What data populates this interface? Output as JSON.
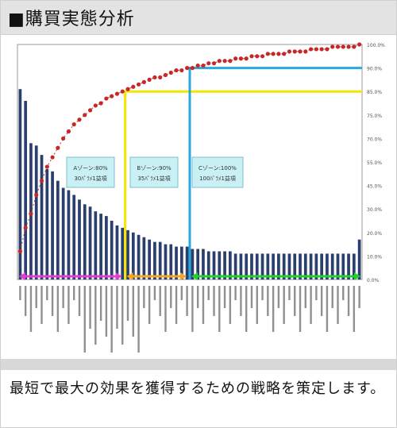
{
  "header": {
    "title": "■購買実態分析"
  },
  "description": "最短で最大の効果を獲得するための戦略を策定します。",
  "colors": {
    "bar": "#2b3f6e",
    "cumulative": "#c62828",
    "zone_a_line": "#f5e500",
    "zone_b_line": "#29a8e0",
    "arrow_a": "#e53fd2",
    "arrow_b": "#f5a623",
    "arrow_c": "#22d12a",
    "box_fill": "#c9f0f4"
  },
  "chart_data": {
    "type": "bar",
    "categories": [
      "",
      "",
      "",
      "",
      "",
      "",
      "",
      "",
      "",
      "",
      "",
      "",
      "",
      "",
      "",
      "",
      "",
      "",
      "",
      "",
      "",
      "",
      "",
      "",
      "",
      "",
      "",
      "",
      "",
      "",
      "",
      "",
      "",
      "",
      "",
      "",
      "",
      "",
      "",
      "",
      "",
      "",
      "",
      "",
      "",
      "",
      "",
      "",
      "",
      "",
      "",
      "",
      "",
      "",
      "",
      "",
      "",
      "",
      "",
      "",
      "",
      "",
      "",
      ""
    ],
    "series": [
      {
        "values": [
          81,
          76,
          58,
          57,
          53,
          47,
          46,
          42,
          39,
          38,
          36,
          34,
          32,
          31,
          29,
          28,
          27,
          25,
          23,
          22,
          21,
          20,
          19,
          18,
          17,
          16,
          16,
          15,
          15,
          14,
          14,
          14,
          13,
          13,
          13,
          12,
          12,
          12,
          12,
          12,
          11,
          11,
          11,
          11,
          11,
          11,
          11,
          11,
          11,
          11,
          11,
          11,
          11,
          11,
          11,
          11,
          11,
          11,
          11,
          11,
          11,
          11,
          11,
          17
        ]
      },
      {
        "values": [
          12,
          22,
          28,
          36,
          42,
          48,
          52,
          56,
          60,
          63,
          66,
          68,
          70,
          72,
          74,
          75,
          77,
          78,
          79,
          80,
          81,
          82,
          83,
          84,
          85,
          86,
          86,
          87,
          88,
          89,
          89,
          90,
          90,
          91,
          91,
          92,
          92,
          93,
          93,
          93,
          94,
          94,
          94,
          95,
          95,
          95,
          96,
          96,
          96,
          96,
          97,
          97,
          97,
          97,
          98,
          98,
          98,
          98,
          99,
          99,
          99,
          99,
          99,
          100
        ]
      }
    ],
    "y2_ticks": [
      "100.0%",
      "90.0%",
      "85.0%",
      "75.0%",
      "70.0%",
      "55.0%",
      "45.0%",
      "30.0%",
      "20.0%",
      "10.0%",
      "0.0%"
    ],
    "zones": [
      {
        "label": "Aゾーン:80%",
        "sub": "30ﾊﾟﾗﾒ1益項"
      },
      {
        "label": "Bゾーン:90%",
        "sub": "35ﾊﾟﾗﾒ1益項"
      },
      {
        "label": "Cゾーン:100%",
        "sub": "100ﾊﾟﾗﾒ1益項"
      }
    ]
  }
}
